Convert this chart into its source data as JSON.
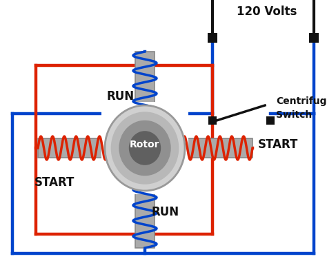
{
  "bg_color": "#ffffff",
  "red_color": "#dd2200",
  "blue_color": "#0044cc",
  "black_color": "#111111",
  "coil_gray": "#aaaaaa",
  "coil_edge": "#888888",
  "rotor_outer": "#cccccc",
  "rotor_inner": "#666666",
  "lw_wire": 3.2,
  "title": "120 Volts",
  "label_run": "RUN",
  "label_start": "START",
  "label_rotor": "Rotor",
  "label_cs1": "Centrifugal",
  "label_cs2": "Switch"
}
